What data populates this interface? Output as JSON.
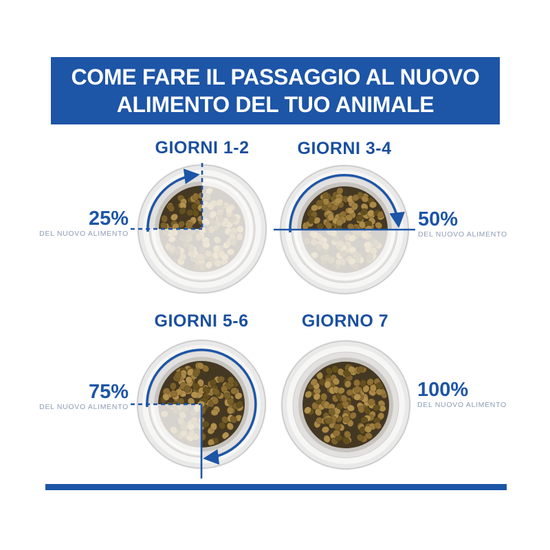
{
  "header": {
    "title_line1": "COME FARE IL PASSAGGIO AL NUOVO",
    "title_line2": "ALIMENTO DEL TUO ANIMALE"
  },
  "bowls": [
    {
      "day_label": "GIORNI 1-2",
      "percent": 25,
      "percent_label": "25%",
      "sub_label": "DEL NUOVO ALIMENTO",
      "label_side": "left"
    },
    {
      "day_label": "GIORNI 3-4",
      "percent": 50,
      "percent_label": "50%",
      "sub_label": "DEL NUOVO ALIMENTO",
      "label_side": "right"
    },
    {
      "day_label": "GIORNI 5-6",
      "percent": 75,
      "percent_label": "75%",
      "sub_label": "DEL NUOVO ALIMENTO",
      "label_side": "left"
    },
    {
      "day_label": "GIORNO 7",
      "percent": 100,
      "percent_label": "100%",
      "sub_label": "DEL NUOVO ALIMENTO",
      "label_side": "right"
    }
  ],
  "colors": {
    "brand_blue": "#1d55a7",
    "day_label_blue": "#1a4f9f",
    "percent_blue": "#1d55a7",
    "sub_label_gray": "#8c9cb4",
    "kibble_vivid": [
      "#a08040",
      "#8f6f33",
      "#b3914e",
      "#79602a",
      "#ab8a47",
      "#64501f"
    ],
    "kibble_bed": "#453823",
    "fade_overlay": "rgba(255,255,255,0.78)"
  }
}
